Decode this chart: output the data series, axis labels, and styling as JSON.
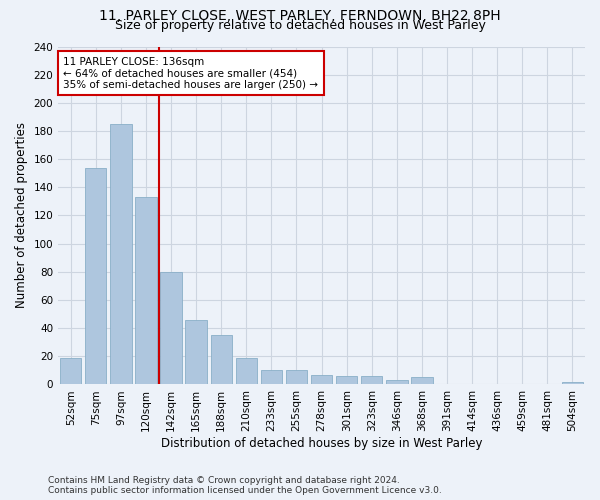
{
  "title": "11, PARLEY CLOSE, WEST PARLEY, FERNDOWN, BH22 8PH",
  "subtitle": "Size of property relative to detached houses in West Parley",
  "xlabel": "Distribution of detached houses by size in West Parley",
  "ylabel": "Number of detached properties",
  "categories": [
    "52sqm",
    "75sqm",
    "97sqm",
    "120sqm",
    "142sqm",
    "165sqm",
    "188sqm",
    "210sqm",
    "233sqm",
    "255sqm",
    "278sqm",
    "301sqm",
    "323sqm",
    "346sqm",
    "368sqm",
    "391sqm",
    "414sqm",
    "436sqm",
    "459sqm",
    "481sqm",
    "504sqm"
  ],
  "values": [
    19,
    154,
    185,
    133,
    80,
    46,
    35,
    19,
    10,
    10,
    7,
    6,
    6,
    3,
    5,
    0,
    0,
    0,
    0,
    0,
    2
  ],
  "bar_color": "#aec6de",
  "bar_edge_color": "#8aafc8",
  "grid_color": "#cdd5e0",
  "annotation_text": "11 PARLEY CLOSE: 136sqm\n← 64% of detached houses are smaller (454)\n35% of semi-detached houses are larger (250) →",
  "annotation_box_color": "#ffffff",
  "annotation_box_edge": "#cc0000",
  "vline_x": 3.5,
  "vline_color": "#cc0000",
  "ylim": [
    0,
    240
  ],
  "yticks": [
    0,
    20,
    40,
    60,
    80,
    100,
    120,
    140,
    160,
    180,
    200,
    220,
    240
  ],
  "footer": "Contains HM Land Registry data © Crown copyright and database right 2024.\nContains public sector information licensed under the Open Government Licence v3.0.",
  "title_fontsize": 10,
  "subtitle_fontsize": 9,
  "xlabel_fontsize": 8.5,
  "ylabel_fontsize": 8.5,
  "tick_fontsize": 7.5,
  "footer_fontsize": 6.5,
  "bg_color": "#edf2f9"
}
